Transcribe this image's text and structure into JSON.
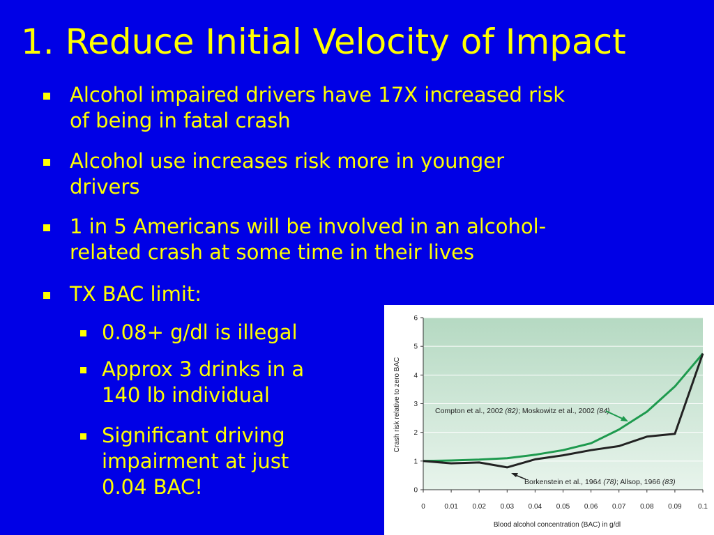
{
  "slide": {
    "title": "1. Reduce Initial Velocity of Impact",
    "bullets": [
      {
        "text_lines": [
          "Alcohol impaired drivers have 17X increased risk",
          "of being in fatal crash"
        ]
      },
      {
        "text_lines": [
          "Alcohol use increases risk more in younger",
          "drivers"
        ]
      },
      {
        "text_lines": [
          "1 in 5 Americans will be involved in an alcohol-",
          "related crash at some time in their lives"
        ]
      },
      {
        "text_lines": [
          "TX BAC limit:"
        ]
      }
    ],
    "sub_bullets": [
      {
        "text_lines": [
          "0.08+ g/dl is illegal"
        ]
      },
      {
        "text_lines": [
          "Approx 3 drinks in a",
          "140 lb individual"
        ]
      },
      {
        "text_lines": [
          "Significant driving",
          "impairment at just",
          "0.04 BAC!"
        ]
      }
    ]
  },
  "colors": {
    "background": "#0000e6",
    "text": "#ffff00",
    "plot_background_top": "#b5d9c2",
    "plot_background_bottom": "#e8f4ec",
    "green_series": "#1e9a4e",
    "black_series": "#222222"
  },
  "chart_data": {
    "type": "line",
    "xlabel": "Blood alcohol concentration (BAC) in g/dl",
    "ylabel": "Crash risk relative to zero BAC",
    "xlim": [
      0,
      0.1
    ],
    "ylim": [
      0,
      6
    ],
    "x_ticks": [
      "0",
      "0.01",
      "0.02",
      "0.03",
      "0.04",
      "0.05",
      "0.06",
      "0.07",
      "0.08",
      "0.09",
      "0.1"
    ],
    "y_ticks": [
      "0",
      "1",
      "2",
      "3",
      "4",
      "5",
      "6"
    ],
    "grid": true,
    "x": [
      0,
      0.01,
      0.02,
      0.03,
      0.04,
      0.05,
      0.06,
      0.07,
      0.08,
      0.09,
      0.1
    ],
    "series": [
      {
        "key": "green",
        "label_pre": "Compton et al., 2002 ",
        "label_ref1": "(82)",
        "label_mid": "; Moskowitz et al., 2002 ",
        "label_ref2": "(84)",
        "values": [
          1.0,
          1.02,
          1.05,
          1.1,
          1.22,
          1.38,
          1.62,
          2.1,
          2.72,
          3.6,
          4.75
        ]
      },
      {
        "key": "black",
        "label_pre": "Borkenstein et al., 1964 ",
        "label_ref1": "(78)",
        "label_mid": "; Allsop, 1966 ",
        "label_ref2": "(83)",
        "values": [
          1.0,
          0.92,
          0.95,
          0.78,
          1.06,
          1.2,
          1.38,
          1.52,
          1.85,
          1.95,
          4.75
        ]
      }
    ]
  }
}
